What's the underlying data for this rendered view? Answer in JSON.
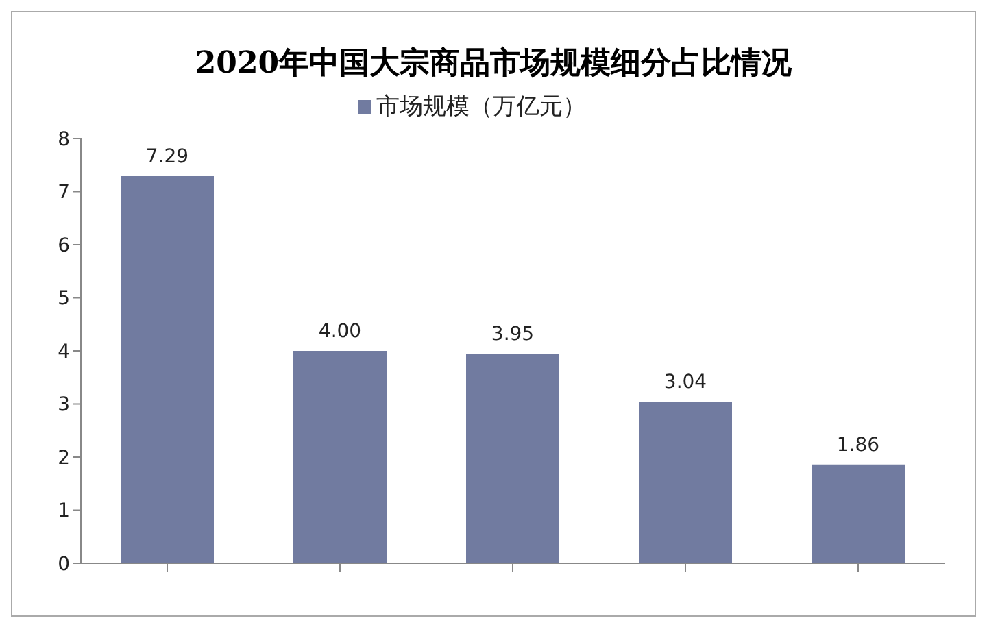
{
  "chart_data": {
    "type": "bar",
    "title": "2020年中国大宗商品市场规模细分占比情况",
    "categories": [
      null,
      null,
      null,
      null,
      null
    ],
    "series": [
      {
        "name": "市场规模（万亿元）",
        "color": "#717ba0",
        "values": [
          7.29,
          4.0,
          3.95,
          3.04,
          1.86
        ]
      }
    ],
    "value_labels": [
      "7.29",
      "4.00",
      "3.95",
      "3.04",
      "1.86"
    ],
    "ylim": [
      0,
      8
    ],
    "yticks": [
      0,
      1,
      2,
      3,
      4,
      5,
      6,
      7,
      8
    ],
    "grid": false,
    "legend": "top"
  }
}
